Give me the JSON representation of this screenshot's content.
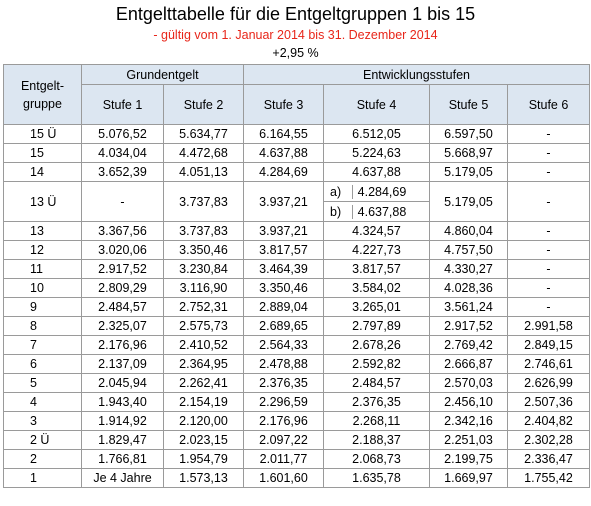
{
  "title": "Entgelttabelle für die Entgeltgruppen 1 bis 15",
  "subtitle": "- gültig vom 1. Januar 2014 bis 31. Dezember 2014",
  "percent": "+2,95 %",
  "header": {
    "group_label": "Entgelt-\ngruppe",
    "grundentgelt": "Grundentgelt",
    "entwicklungsstufen": "Entwicklungsstufen",
    "stufen": [
      "Stufe 1",
      "Stufe 2",
      "Stufe 3",
      "Stufe 4",
      "Stufe 5",
      "Stufe 6"
    ]
  },
  "rows": [
    {
      "group": "15 Ü",
      "s1": "5.076,52",
      "s2": "5.634,77",
      "s3": "6.164,55",
      "s4": "6.512,05",
      "s5": "6.597,50",
      "s6": "-"
    },
    {
      "group": "15",
      "s1": "4.034,04",
      "s2": "4.472,68",
      "s3": "4.637,88",
      "s4": "5.224,63",
      "s5": "5.668,97",
      "s6": "-"
    },
    {
      "group": "14",
      "s1": "3.652,39",
      "s2": "4.051,13",
      "s3": "4.284,69",
      "s4": "4.637,88",
      "s5": "5.179,05",
      "s6": "-"
    },
    {
      "group": "13 Ü",
      "s1": "-",
      "s2": "3.737,83",
      "s3": "3.937,21",
      "s4a_label": "a)",
      "s4a": "4.284,69",
      "s4b_label": "b)",
      "s4b": "4.637,88",
      "s5": "5.179,05",
      "s6": "-"
    },
    {
      "group": "13",
      "s1": "3.367,56",
      "s2": "3.737,83",
      "s3": "3.937,21",
      "s4": "4.324,57",
      "s5": "4.860,04",
      "s6": "-"
    },
    {
      "group": "12",
      "s1": "3.020,06",
      "s2": "3.350,46",
      "s3": "3.817,57",
      "s4": "4.227,73",
      "s5": "4.757,50",
      "s6": "-"
    },
    {
      "group": "11",
      "s1": "2.917,52",
      "s2": "3.230,84",
      "s3": "3.464,39",
      "s4": "3.817,57",
      "s5": "4.330,27",
      "s6": "-"
    },
    {
      "group": "10",
      "s1": "2.809,29",
      "s2": "3.116,90",
      "s3": "3.350,46",
      "s4": "3.584,02",
      "s5": "4.028,36",
      "s6": "-"
    },
    {
      "group": "9",
      "s1": "2.484,57",
      "s2": "2.752,31",
      "s3": "2.889,04",
      "s4": "3.265,01",
      "s5": "3.561,24",
      "s6": "-"
    },
    {
      "group": "8",
      "s1": "2.325,07",
      "s2": "2.575,73",
      "s3": "2.689,65",
      "s4": "2.797,89",
      "s5": "2.917,52",
      "s6": "2.991,58"
    },
    {
      "group": "7",
      "s1": "2.176,96",
      "s2": "2.410,52",
      "s3": "2.564,33",
      "s4": "2.678,26",
      "s5": "2.769,42",
      "s6": "2.849,15"
    },
    {
      "group": "6",
      "s1": "2.137,09",
      "s2": "2.364,95",
      "s3": "2.478,88",
      "s4": "2.592,82",
      "s5": "2.666,87",
      "s6": "2.746,61"
    },
    {
      "group": "5",
      "s1": "2.045,94",
      "s2": "2.262,41",
      "s3": "2.376,35",
      "s4": "2.484,57",
      "s5": "2.570,03",
      "s6": "2.626,99"
    },
    {
      "group": "4",
      "s1": "1.943,40",
      "s2": "2.154,19",
      "s3": "2.296,59",
      "s4": "2.376,35",
      "s5": "2.456,10",
      "s6": "2.507,36"
    },
    {
      "group": "3",
      "s1": "1.914,92",
      "s2": "2.120,00",
      "s3": "2.176,96",
      "s4": "2.268,11",
      "s5": "2.342,16",
      "s6": "2.404,82"
    },
    {
      "group": "2 Ü",
      "s1": "1.829,47",
      "s2": "2.023,15",
      "s3": "2.097,22",
      "s4": "2.188,37",
      "s5": "2.251,03",
      "s6": "2.302,28"
    },
    {
      "group": "2",
      "s1": "1.766,81",
      "s2": "1.954,79",
      "s3": "2.011,77",
      "s4": "2.068,73",
      "s5": "2.199,75",
      "s6": "2.336,47"
    },
    {
      "group": "1",
      "s1": "Je 4 Jahre",
      "s2": "1.573,13",
      "s3": "1.601,60",
      "s4": "1.635,78",
      "s5": "1.669,97",
      "s6": "1.755,42"
    }
  ]
}
